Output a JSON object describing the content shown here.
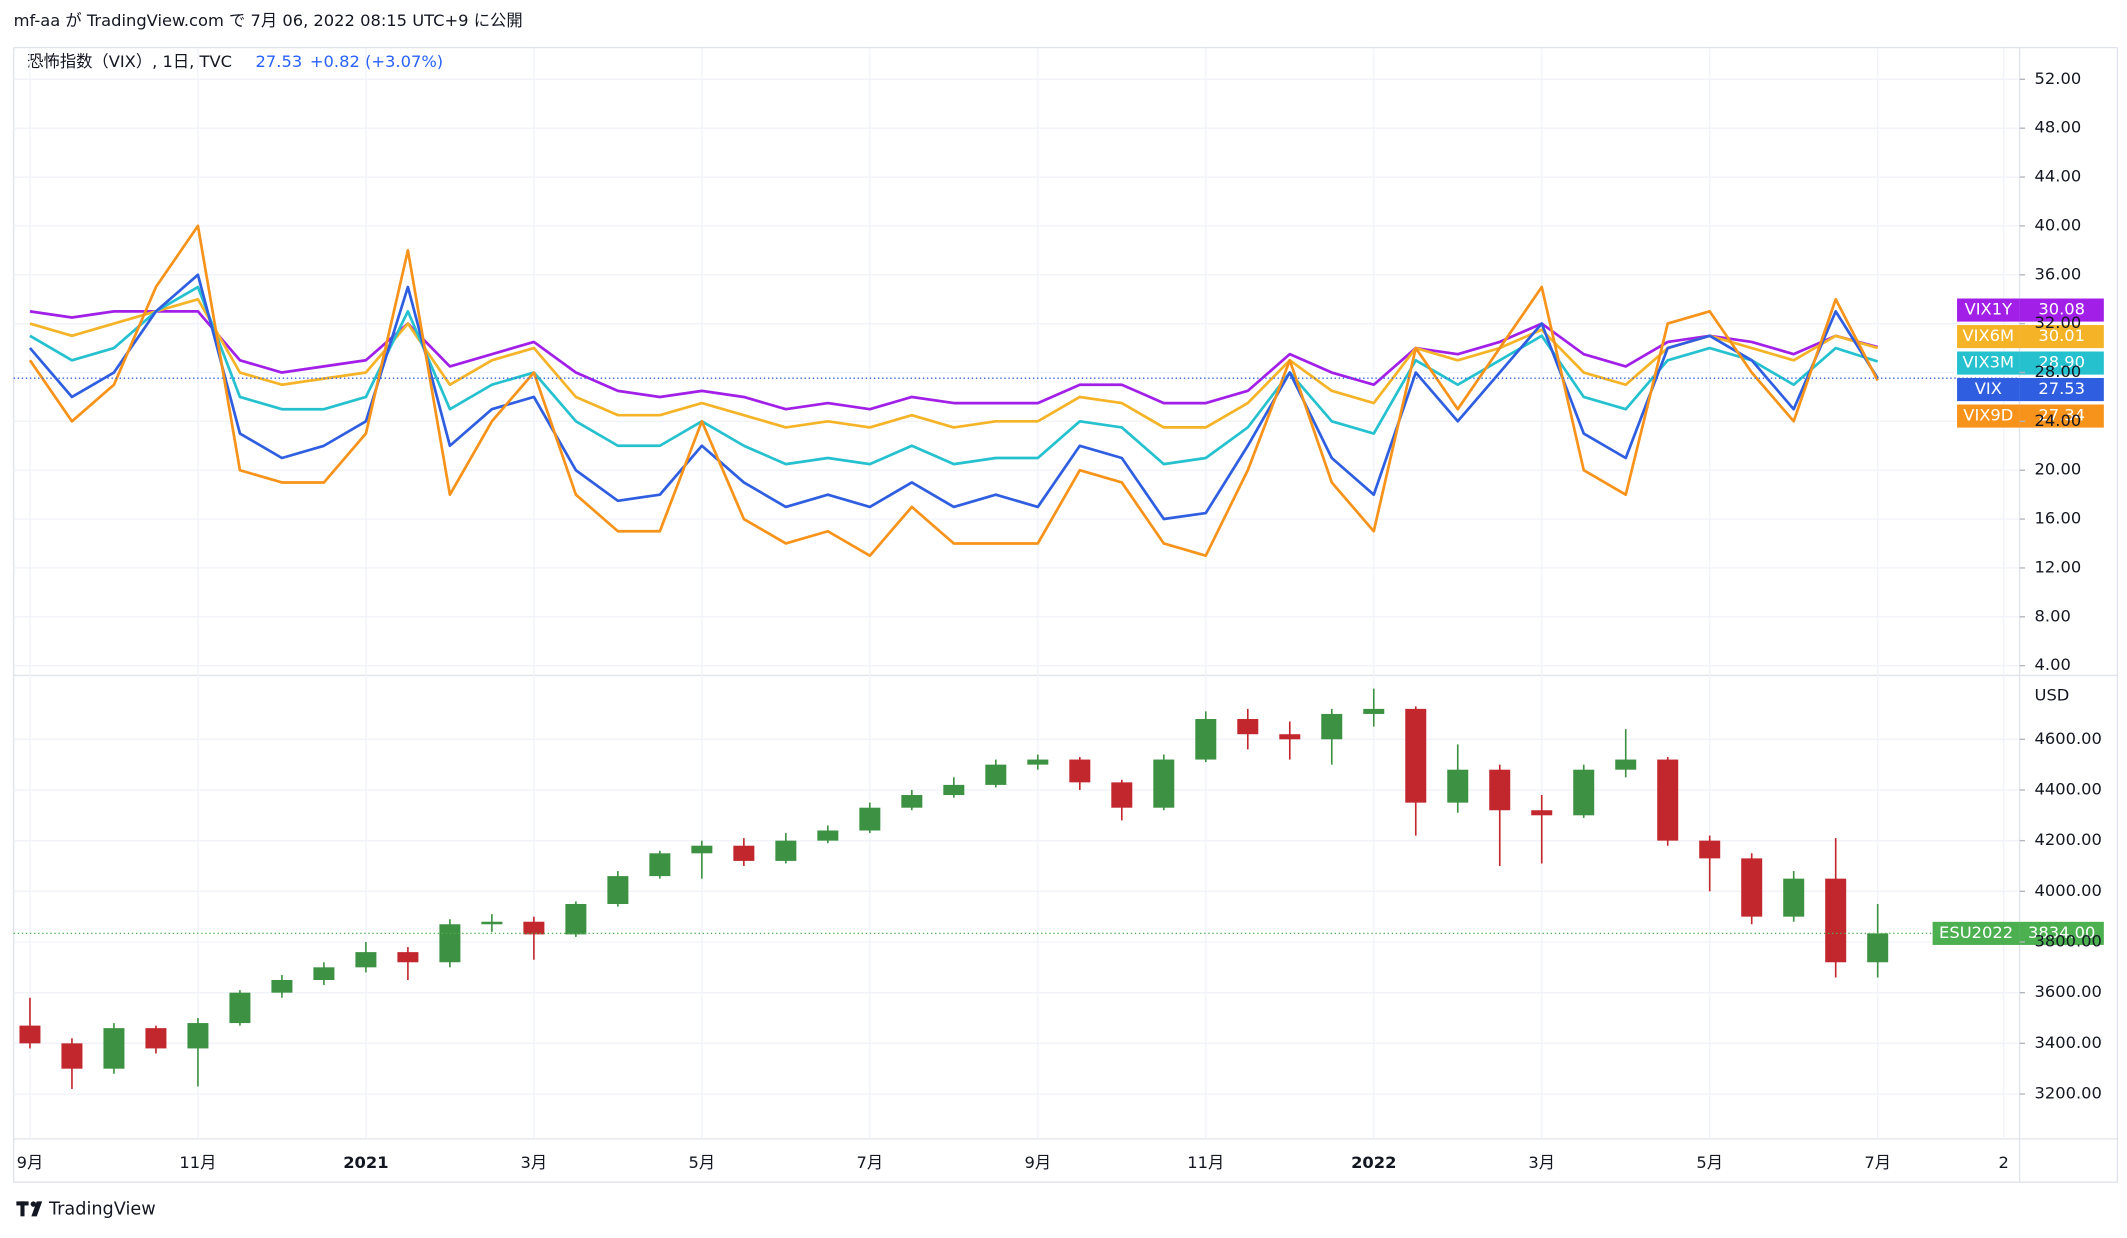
{
  "header": "mf-aa が TradingView.com で 7月 06, 2022 08:15 UTC+9 に公開",
  "footer": "TradingView",
  "chart_data": [
    {
      "type": "line",
      "title": "恐怖指数（VIX）, 1日, TVC",
      "change": "+0.82 (+3.07%)",
      "categories": [
        "9月",
        null,
        null,
        null,
        "11月",
        null,
        null,
        null,
        "2021",
        null,
        null,
        null,
        "3月",
        null,
        null,
        null,
        "5月",
        null,
        null,
        null,
        "7月",
        null,
        null,
        null,
        "9月",
        null,
        null,
        null,
        "11月",
        null,
        null,
        null,
        "2022",
        null,
        null,
        null,
        "3月",
        null,
        null,
        null,
        "5月",
        null,
        null,
        null,
        "7月",
        null,
        null,
        "2"
      ],
      "ylim": [
        3.2,
        54.6
      ],
      "yticks": [
        {
          "value": 4,
          "label": "4.00"
        },
        {
          "value": 8,
          "label": "8.00"
        },
        {
          "value": 12,
          "label": "12.00"
        },
        {
          "value": 16,
          "label": "16.00"
        },
        {
          "value": 20,
          "label": "20.00"
        },
        {
          "value": 24,
          "label": "24.00"
        },
        {
          "value": 28,
          "label": "28.00"
        },
        {
          "value": 32,
          "label": "32.00"
        },
        {
          "value": 36,
          "label": "36.00"
        },
        {
          "value": 40,
          "label": "40.00"
        },
        {
          "value": 44,
          "label": "44.00"
        },
        {
          "value": 48,
          "label": "48.00"
        },
        {
          "value": 52,
          "label": "52.00"
        }
      ],
      "grid": true,
      "series": [
        {
          "name": "VIX1Y",
          "color": "#a21fe8",
          "last": {
            "value": 30.08,
            "label": "30.08"
          },
          "values": [
            33,
            32.5,
            33,
            33,
            33,
            29,
            28,
            28.5,
            29,
            32,
            28.5,
            29.5,
            30.5,
            28,
            26.5,
            26,
            26.5,
            26,
            25,
            25.5,
            25,
            26,
            25.5,
            25.5,
            25.5,
            27,
            27,
            25.5,
            25.5,
            26.5,
            29.5,
            28,
            27,
            30,
            29.5,
            30.5,
            32,
            29.5,
            28.5,
            30.5,
            31,
            30.5,
            29.5,
            31,
            30.08,
            null,
            null,
            null
          ]
        },
        {
          "name": "VIX6M",
          "color": "#f5b328",
          "last": {
            "value": 30.01,
            "label": "30.01"
          },
          "values": [
            32,
            31,
            32,
            33,
            34,
            28,
            27,
            27.5,
            28,
            32,
            27,
            29,
            30,
            26,
            24.5,
            24.5,
            25.5,
            24.5,
            23.5,
            24,
            23.5,
            24.5,
            23.5,
            24,
            24,
            26,
            25.5,
            23.5,
            23.5,
            25.5,
            29,
            26.5,
            25.5,
            30,
            29,
            30,
            31.5,
            28,
            27,
            30,
            31,
            30,
            29,
            31,
            30.01,
            null,
            null,
            null
          ]
        },
        {
          "name": "VIX3M",
          "color": "#26c1cf",
          "last": {
            "value": 28.9,
            "label": "28.90"
          },
          "values": [
            31,
            29,
            30,
            33,
            35,
            26,
            25,
            25,
            26,
            33,
            25,
            27,
            28,
            24,
            22,
            22,
            24,
            22,
            20.5,
            21,
            20.5,
            22,
            20.5,
            21,
            21,
            24,
            23.5,
            20.5,
            21,
            23.5,
            28,
            24,
            23,
            29,
            27,
            29,
            31,
            26,
            25,
            29,
            30,
            29,
            27,
            30,
            28.9,
            null,
            null,
            null
          ]
        },
        {
          "name": "VIX",
          "color": "#2f5fe0",
          "last": {
            "value": 27.53,
            "label": "27.53"
          },
          "values": [
            30,
            26,
            28,
            33,
            36,
            23,
            21,
            22,
            24,
            35,
            22,
            25,
            26,
            20,
            17.5,
            18,
            22,
            19,
            17,
            18,
            17,
            19,
            17,
            18,
            17,
            22,
            21,
            16,
            16.5,
            22,
            28,
            21,
            18,
            28,
            24,
            28,
            32,
            23,
            21,
            30,
            31,
            29,
            25,
            33,
            27.53,
            null,
            null,
            null
          ]
        },
        {
          "name": "VIX9D",
          "color": "#f7931a",
          "last": {
            "value": 27.34,
            "label": "27.34"
          },
          "values": [
            29,
            24,
            27,
            35,
            40,
            20,
            19,
            19,
            23,
            38,
            18,
            24,
            28,
            18,
            15,
            15,
            24,
            16,
            14,
            15,
            13,
            17,
            14,
            14,
            14,
            20,
            19,
            14,
            13,
            20,
            29,
            19,
            15,
            30,
            25,
            30,
            35,
            20,
            18,
            32,
            33,
            28,
            24,
            34,
            27.34,
            null,
            null,
            null
          ]
        }
      ]
    },
    {
      "type": "candlestick",
      "name": "ESU2022",
      "y_unit": "USD",
      "up_color": "#3d9142",
      "down_color": "#c2272d",
      "badge_color": "#4caf50",
      "last": {
        "value": 3834,
        "label": "3834.00"
      },
      "ylim": [
        3023,
        4852
      ],
      "yticks": [
        {
          "value": 3200,
          "label": "3200.00"
        },
        {
          "value": 3400,
          "label": "3400.00"
        },
        {
          "value": 3600,
          "label": "3600.00"
        },
        {
          "value": 3800,
          "label": "3800.00"
        },
        {
          "value": 4000,
          "label": "4000.00"
        },
        {
          "value": 4200,
          "label": "4200.00"
        },
        {
          "value": 4400,
          "label": "4400.00"
        },
        {
          "value": 4600,
          "label": "4600.00"
        }
      ],
      "grid": true,
      "open": [
        3470,
        3400,
        3300,
        3460,
        3380,
        3480,
        3600,
        3650,
        3700,
        3760,
        3720,
        3870,
        3880,
        3830,
        3950,
        4060,
        4150,
        4180,
        4120,
        4200,
        4240,
        4330,
        4380,
        4420,
        4500,
        4520,
        4430,
        4330,
        4520,
        4680,
        4620,
        4600,
        4700,
        4720,
        4350,
        4480,
        4320,
        4300,
        4480,
        4520,
        4200,
        4130,
        3900,
        4050,
        3720,
        null,
        null,
        null
      ],
      "high": [
        3580,
        3420,
        3480,
        3470,
        3500,
        3610,
        3670,
        3720,
        3800,
        3780,
        3890,
        3910,
        3900,
        3960,
        4080,
        4160,
        4200,
        4210,
        4230,
        4260,
        4350,
        4400,
        4450,
        4520,
        4540,
        4530,
        4440,
        4540,
        4710,
        4720,
        4670,
        4720,
        4800,
        4730,
        4580,
        4500,
        4380,
        4500,
        4640,
        4530,
        4220,
        4150,
        4080,
        4210,
        3950,
        null,
        null,
        null
      ],
      "low": [
        3380,
        3220,
        3280,
        3360,
        3230,
        3470,
        3580,
        3630,
        3680,
        3650,
        3700,
        3840,
        3730,
        3820,
        3940,
        4050,
        4050,
        4100,
        4110,
        4190,
        4230,
        4320,
        4370,
        4410,
        4480,
        4400,
        4280,
        4320,
        4510,
        4560,
        4520,
        4500,
        4650,
        4220,
        4310,
        4100,
        4110,
        4290,
        4450,
        4180,
        4000,
        3870,
        3880,
        3660,
        3660,
        null,
        null,
        null
      ],
      "close": [
        3400,
        3300,
        3460,
        3380,
        3480,
        3600,
        3650,
        3700,
        3760,
        3720,
        3870,
        3880,
        3830,
        3950,
        4060,
        4150,
        4180,
        4120,
        4200,
        4240,
        4330,
        4380,
        4420,
        4500,
        4520,
        4430,
        4330,
        4520,
        4680,
        4620,
        4600,
        4700,
        4720,
        4350,
        4480,
        4320,
        4300,
        4480,
        4520,
        4200,
        4130,
        3900,
        4050,
        3720,
        3834,
        null,
        null,
        null
      ]
    }
  ]
}
